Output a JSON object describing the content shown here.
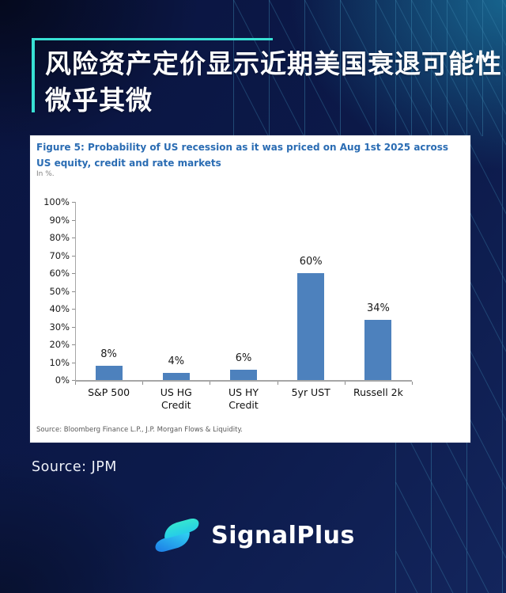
{
  "page": {
    "background_color": "#0c1a4a",
    "accent_color": "#38e0d4",
    "pattern_line_color": "#3b88b0"
  },
  "header": {
    "title_lines": [
      "风险资产定价显示近期美国衰退可能性",
      "微乎其微"
    ]
  },
  "figure_card": {
    "caption": "Figure 5: Probability of US recession as it was priced on Aug 1st 2025 across US equity, credit and rate markets",
    "caption_color": "#2a6cb3",
    "unit_label": "In %.",
    "source": "Source: Bloomberg Finance L.P., J.P. Morgan Flows & Liquidity."
  },
  "chart_data": {
    "type": "bar",
    "title": "Figure 5: Probability of US recession as it was priced on Aug 1st 2025 across US equity, credit and rate markets",
    "subtitle": "In %.",
    "categories": [
      "S&P 500",
      "US HG\nCredit",
      "US HY\nCredit",
      "5yr UST",
      "Russell 2k"
    ],
    "values": [
      8,
      4,
      6,
      60,
      34
    ],
    "data_labels": [
      "8%",
      "4%",
      "6%",
      "60%",
      "34%"
    ],
    "bar_color": "#4d81bd",
    "xlabel": "",
    "ylabel": "In %.",
    "ylim": [
      0,
      100
    ],
    "ytick_step": 10,
    "ytick_suffix": "%",
    "grid": false,
    "legend_position": "none"
  },
  "footer": {
    "source_label": "Source: JPM"
  },
  "brand": {
    "name": "SignalPlus",
    "icon": "signalplus-wave-logo"
  }
}
